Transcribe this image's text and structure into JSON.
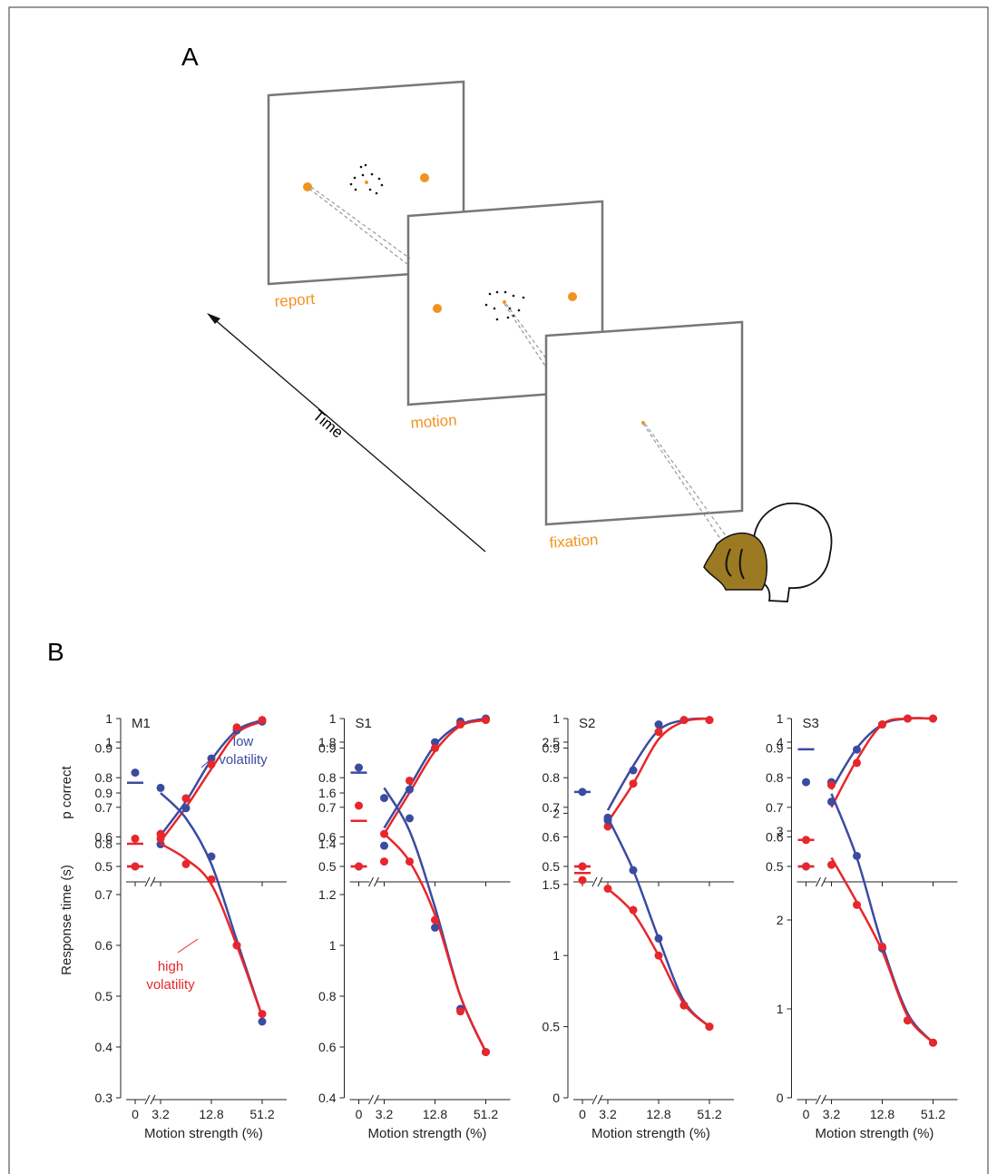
{
  "panel_a": {
    "label": "A",
    "time_label": "Time",
    "screens": [
      "report",
      "motion",
      "fixation"
    ]
  },
  "panel_b": {
    "label": "B"
  },
  "chart_data": [
    {
      "type": "line",
      "title": "M1",
      "ylabel": "p correct",
      "categories": [
        "0",
        "3.2",
        null,
        "12.8",
        null,
        "51.2"
      ],
      "ylim": [
        0.5,
        1
      ],
      "yticks": [
        0.5,
        0.6,
        0.7,
        0.8,
        0.9,
        1
      ],
      "series": [
        {
          "color": "#3b4ba0",
          "values": [
            0.5,
            0.575,
            0.73,
            0.865,
            0.96,
            0.99
          ],
          "fit": [
            0.5,
            0.605,
            0.72,
            0.86,
            0.96,
            0.995
          ]
        },
        {
          "color": "#e8262b",
          "values": [
            0.5,
            0.61,
            0.73,
            0.845,
            0.97,
            0.995
          ],
          "fit": [
            0.5,
            0.585,
            0.7,
            0.83,
            0.95,
            0.99
          ]
        }
      ]
    },
    {
      "type": "line",
      "title": "S1",
      "categories": [
        "0",
        "3.2",
        null,
        "12.8",
        null,
        "51.2"
      ],
      "ylim": [
        0.5,
        1
      ],
      "yticks": [
        0.5,
        0.6,
        0.7,
        0.8,
        0.9,
        1
      ],
      "series": [
        {
          "color": "#3b4ba0",
          "values": [
            0.5,
            0.57,
            0.76,
            0.92,
            0.99,
            1.0
          ],
          "fit": [
            0.5,
            0.63,
            0.77,
            0.91,
            0.98,
            1.0
          ]
        },
        {
          "color": "#e8262b",
          "values": [
            0.5,
            0.61,
            0.79,
            0.9,
            0.98,
            0.995
          ],
          "fit": [
            0.5,
            0.61,
            0.75,
            0.89,
            0.975,
            0.995
          ]
        }
      ]
    },
    {
      "type": "line",
      "title": "S2",
      "categories": [
        "0",
        "3.2",
        null,
        "12.8",
        null,
        "51.2"
      ],
      "ylim": [
        0.5,
        1
      ],
      "yticks": [
        0.5,
        0.6,
        0.7,
        0.8,
        0.9,
        1
      ],
      "series": [
        {
          "color": "#3b4ba0",
          "values": [
            0.5,
            0.665,
            0.825,
            0.98,
            0.995,
            0.995
          ],
          "fit": [
            0.5,
            0.69,
            0.84,
            0.96,
            0.995,
            1.0
          ]
        },
        {
          "color": "#e8262b",
          "values": [
            0.5,
            0.635,
            0.78,
            0.955,
            0.995,
            0.995
          ],
          "fit": [
            0.5,
            0.65,
            0.78,
            0.93,
            0.99,
            1.0
          ]
        }
      ]
    },
    {
      "type": "line",
      "title": "S3",
      "categories": [
        "0",
        "3.2",
        null,
        "12.8",
        null,
        "51.2"
      ],
      "ylim": [
        0.5,
        1
      ],
      "yticks": [
        0.5,
        0.6,
        0.7,
        0.8,
        0.9,
        1
      ],
      "series": [
        {
          "color": "#3b4ba0",
          "values": [
            0.5,
            0.785,
            0.895,
            0.98,
            1.0,
            1.0
          ],
          "fit": [
            0.5,
            0.76,
            0.9,
            0.98,
            1.0,
            1.0
          ]
        },
        {
          "color": "#e8262b",
          "values": [
            0.5,
            0.775,
            0.85,
            0.98,
            1.0,
            1.0
          ],
          "fit": [
            0.5,
            0.7,
            0.86,
            0.98,
            1.0,
            1.0
          ]
        }
      ]
    },
    {
      "type": "line",
      "ylabel": "Response time (s)",
      "xlabel": "Motion strength (%)",
      "categories": [
        "0",
        "3.2",
        null,
        "12.8",
        null,
        "51.2"
      ],
      "ylim": [
        0.3,
        1
      ],
      "yticks": [
        0.3,
        0.4,
        0.5,
        0.6,
        0.7,
        0.8,
        0.9,
        1
      ],
      "annotations": [
        {
          "lines": [
            "low",
            "volatility"
          ],
          "color": "#3b4ba0"
        },
        {
          "lines": [
            "high",
            "volatility"
          ],
          "color": "#e8262b"
        }
      ],
      "series": [
        {
          "color": "#3b4ba0",
          "values": [
            0.94,
            0.91,
            0.87,
            0.775,
            0.6,
            0.45
          ],
          "fit": [
            0.92,
            0.9,
            0.85,
            0.76,
            0.61,
            0.46
          ]
        },
        {
          "color": "#e8262b",
          "values": [
            0.81,
            0.81,
            0.76,
            0.73,
            0.6,
            0.465
          ],
          "fit": [
            0.8,
            0.8,
            0.77,
            0.72,
            0.6,
            0.46
          ]
        }
      ]
    },
    {
      "type": "line",
      "xlabel": "Motion strength (%)",
      "categories": [
        "0",
        "3.2",
        null,
        "12.8",
        null,
        "51.2"
      ],
      "ylim": [
        0.4,
        1.8
      ],
      "yticks": [
        0.4,
        0.6,
        0.8,
        1,
        1.2,
        1.4,
        1.6,
        1.8
      ],
      "series": [
        {
          "color": "#3b4ba0",
          "values": [
            1.7,
            1.58,
            1.5,
            1.07,
            0.75,
            0.58
          ],
          "fit": [
            1.68,
            1.62,
            1.45,
            1.15,
            0.8,
            0.58
          ]
        },
        {
          "color": "#e8262b",
          "values": [
            1.55,
            1.33,
            1.33,
            1.1,
            0.74,
            0.58
          ],
          "fit": [
            1.49,
            1.44,
            1.33,
            1.12,
            0.8,
            0.58
          ]
        }
      ]
    },
    {
      "type": "line",
      "xlabel": "Motion strength (%)",
      "categories": [
        "0",
        "3.2",
        null,
        "12.8",
        null,
        "51.2"
      ],
      "ylim": [
        0,
        2.5
      ],
      "yticks": [
        0,
        0.5,
        1,
        1.5,
        2,
        2.5
      ],
      "series": [
        {
          "color": "#3b4ba0",
          "values": [
            2.15,
            1.95,
            1.6,
            1.12,
            0.65,
            0.5
          ],
          "fit": [
            2.15,
            1.97,
            1.6,
            1.12,
            0.68,
            0.5
          ]
        },
        {
          "color": "#e8262b",
          "values": [
            1.53,
            1.47,
            1.32,
            1.0,
            0.65,
            0.5
          ],
          "fit": [
            1.58,
            1.47,
            1.3,
            1.0,
            0.66,
            0.5
          ]
        }
      ]
    },
    {
      "type": "line",
      "xlabel": "Motion strength (%)",
      "categories": [
        "0",
        "3.2",
        null,
        "12.8",
        null,
        "51.2"
      ],
      "ylim": [
        0,
        4
      ],
      "yticks": [
        0,
        1,
        2,
        3,
        4
      ],
      "series": [
        {
          "color": "#3b4ba0",
          "values": [
            3.55,
            3.33,
            2.72,
            1.68,
            0.87,
            0.62
          ],
          "fit": [
            3.92,
            3.42,
            2.7,
            1.72,
            0.95,
            0.62
          ]
        },
        {
          "color": "#e8262b",
          "values": [
            2.9,
            2.62,
            2.17,
            1.7,
            0.87,
            0.62
          ],
          "fit": [
            2.9,
            2.7,
            2.2,
            1.65,
            0.92,
            0.62
          ]
        }
      ]
    }
  ]
}
